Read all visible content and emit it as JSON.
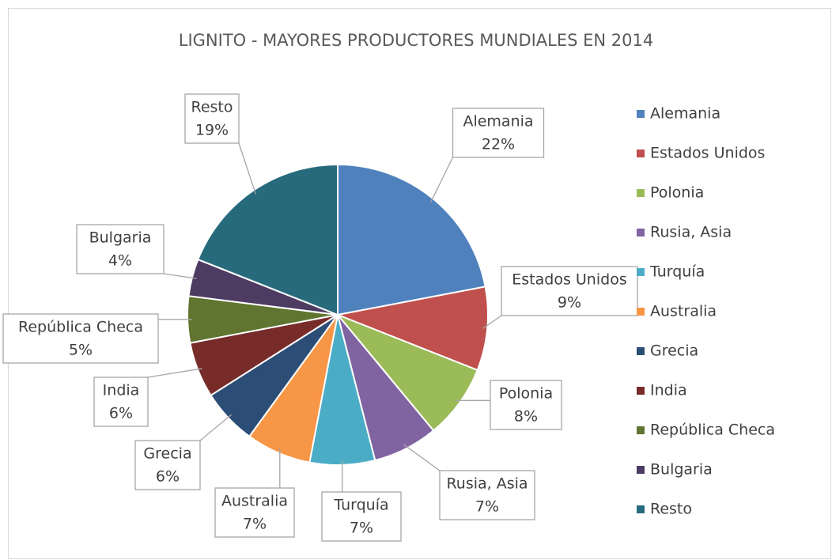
{
  "chart_data": {
    "type": "pie",
    "title": "LIGNITO - MAYORES PRODUCTORES MUNDIALES EN 2014",
    "categories": [
      "Alemania",
      "Estados Unidos",
      "Polonia",
      "Rusia, Asia",
      "Turquía",
      "Australia",
      "Grecia",
      "India",
      "República Checa",
      "Bulgaria",
      "Resto"
    ],
    "values": [
      22,
      9,
      8,
      7,
      7,
      7,
      6,
      6,
      5,
      4,
      19
    ],
    "value_labels": [
      "22%",
      "9%",
      "8%",
      "7%",
      "7%",
      "7%",
      "6%",
      "6%",
      "5%",
      "4%",
      "19%"
    ],
    "colors": [
      "#4f81bd",
      "#c0504d",
      "#9bbb59",
      "#8064a2",
      "#4bacc6",
      "#f79646",
      "#2c4d75",
      "#772c2a",
      "#5f7530",
      "#4d3b62",
      "#276a7c"
    ],
    "legend": "right"
  }
}
